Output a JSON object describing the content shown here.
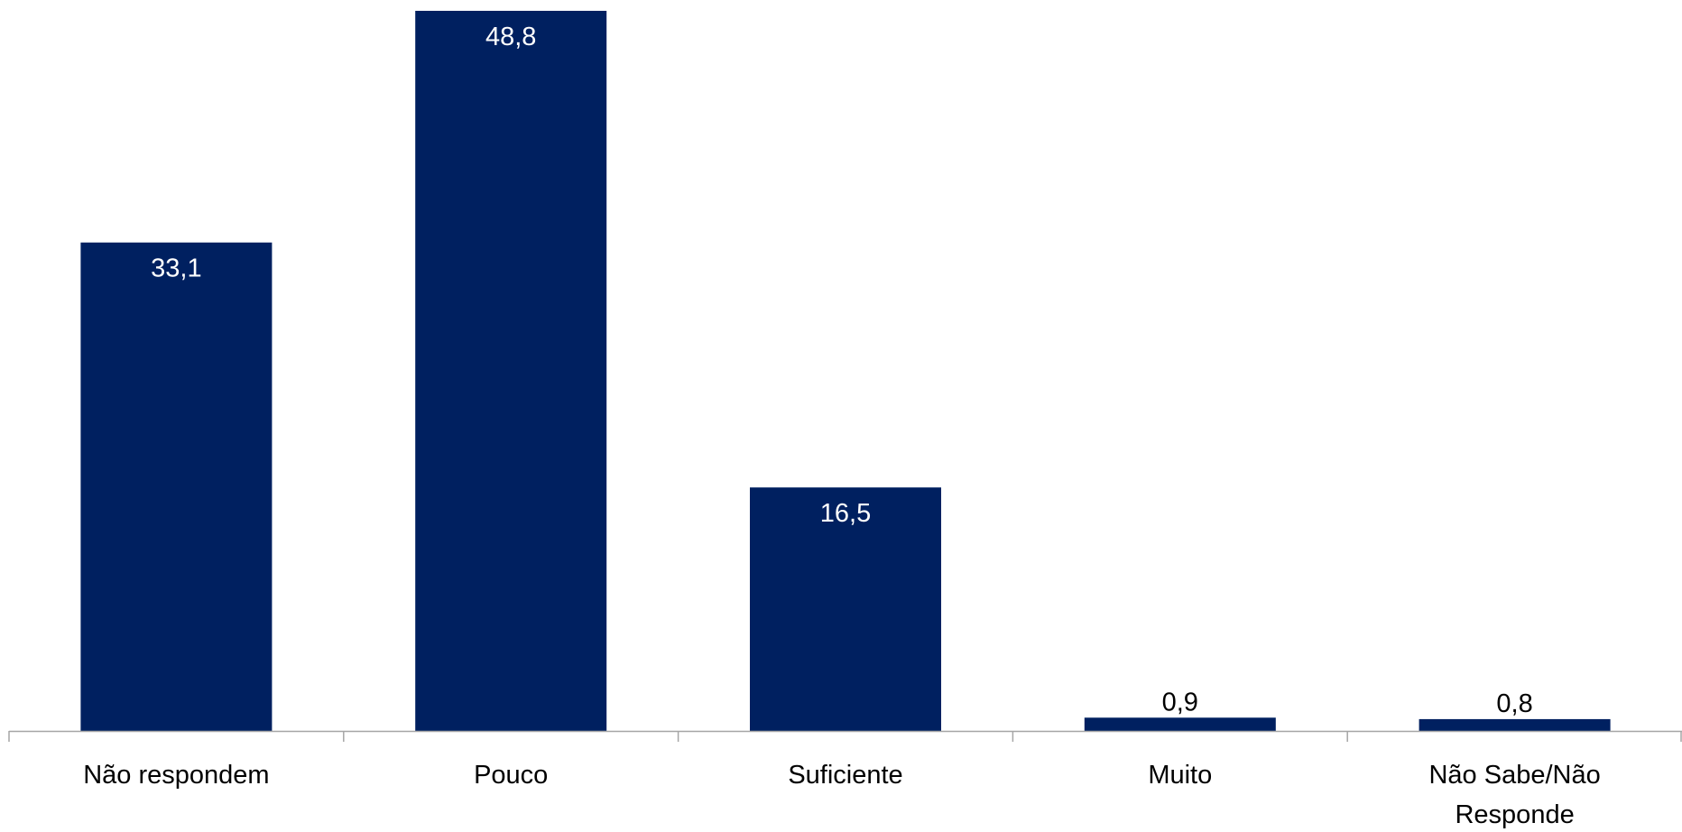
{
  "chart_data": {
    "type": "bar",
    "categories": [
      "Não respondem",
      "Pouco",
      "Suficiente",
      "Muito",
      "Não Sabe/Não Responde"
    ],
    "category_lines": [
      [
        "Não respondem"
      ],
      [
        "Pouco"
      ],
      [
        "Suficiente"
      ],
      [
        "Muito"
      ],
      [
        "Não Sabe/Não",
        "Responde"
      ]
    ],
    "values": [
      33.1,
      48.8,
      16.5,
      0.9,
      0.8
    ],
    "value_labels": [
      "33,1",
      "48,8",
      "16,5",
      "0,9",
      "0,8"
    ],
    "ylim": [
      0,
      48.8
    ],
    "bar_color": "#002060",
    "grid": false,
    "legend": "none"
  }
}
